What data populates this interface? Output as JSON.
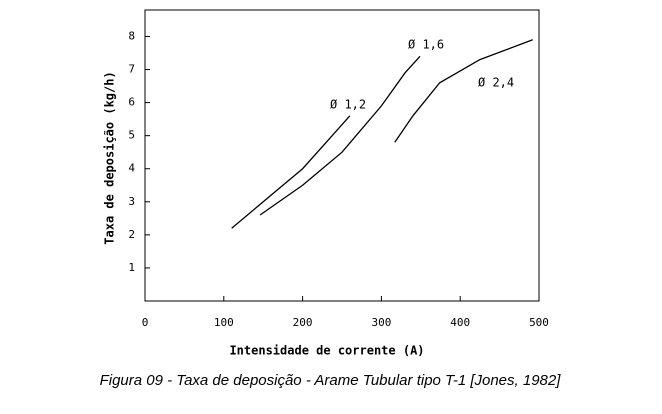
{
  "chart_data": {
    "type": "line",
    "caption": "Figura 09 - Taxa de deposição - Arame Tubular tipo T-1 [Jones, 1982]",
    "x_label": "Intensidade de corrente (A)",
    "y_label": "Taxa de deposição (kg/h)",
    "xlim": [
      0,
      500
    ],
    "xticks": [
      0,
      100,
      200,
      300,
      400,
      500
    ],
    "ylim": [
      0,
      8.8
    ],
    "yticks": [
      1,
      2,
      3,
      4,
      5,
      6,
      7,
      8
    ],
    "series": [
      {
        "name": "Ø 1,2",
        "color": "#000000",
        "x": [
          110,
          150,
          200,
          230,
          260
        ],
        "values": [
          2.2,
          3.0,
          4.0,
          4.8,
          5.6
        ]
      },
      {
        "name": "Ø 1,6",
        "color": "#000000",
        "x": [
          146,
          200,
          250,
          300,
          330,
          349
        ],
        "values": [
          2.6,
          3.5,
          4.5,
          5.9,
          6.9,
          7.4
        ]
      },
      {
        "name": "Ø 2,4",
        "color": "#000000",
        "x": [
          317,
          340,
          374,
          425,
          492
        ],
        "values": [
          4.8,
          5.6,
          6.6,
          7.3,
          7.9
        ]
      }
    ]
  }
}
